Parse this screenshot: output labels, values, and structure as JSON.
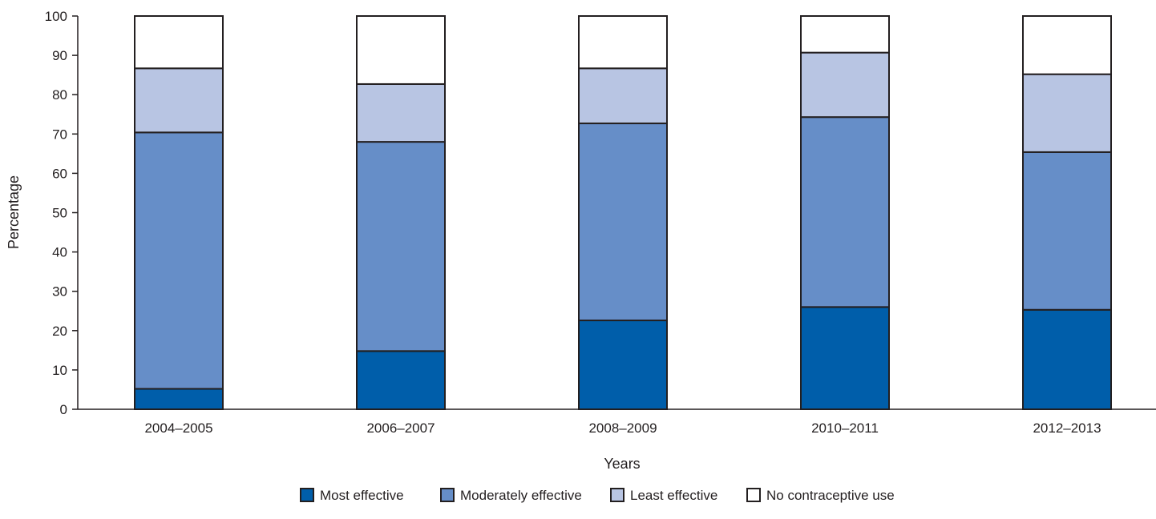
{
  "chart_data": {
    "type": "bar",
    "stacked": true,
    "title": "",
    "xlabel": "Years",
    "ylabel": "Percentage",
    "ylim": [
      0,
      100
    ],
    "yticks": [
      0,
      10,
      20,
      30,
      40,
      50,
      60,
      70,
      80,
      90,
      100
    ],
    "grid": false,
    "legend_position": "bottom-center",
    "categories": [
      "2004–2005",
      "2006–2007",
      "2008–2009",
      "2010–2011",
      "2012–2013"
    ],
    "series": [
      {
        "name": "Most effective",
        "color": "#005eaa",
        "values": [
          5.2,
          14.8,
          22.6,
          26.0,
          25.3
        ]
      },
      {
        "name": "Moderately effective",
        "color": "#668ec8",
        "values": [
          65.2,
          53.2,
          50.1,
          48.3,
          40.1
        ]
      },
      {
        "name": "Least effective",
        "color": "#b8c5e3",
        "values": [
          16.3,
          14.7,
          14.0,
          16.4,
          19.8
        ]
      },
      {
        "name": "No contraceptive use",
        "color": "#ffffff",
        "values": [
          13.3,
          17.3,
          13.3,
          9.3,
          14.8
        ]
      }
    ]
  }
}
